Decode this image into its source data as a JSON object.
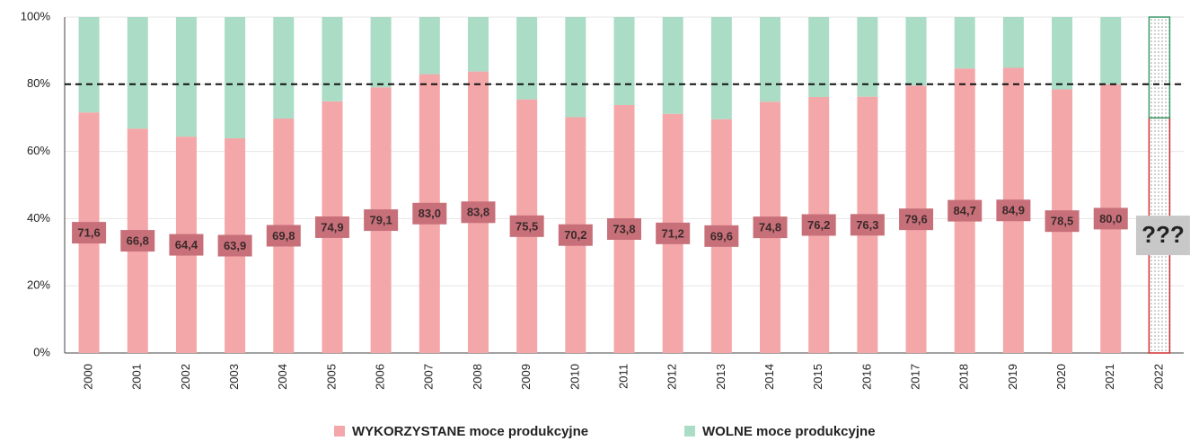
{
  "chart_data": {
    "type": "stacked_bar_100",
    "categories": [
      "2000",
      "2001",
      "2002",
      "2003",
      "2004",
      "2005",
      "2006",
      "2007",
      "2008",
      "2009",
      "2010",
      "2011",
      "2012",
      "2013",
      "2014",
      "2015",
      "2016",
      "2017",
      "2018",
      "2019",
      "2020",
      "2021",
      "2022"
    ],
    "series": [
      {
        "name": "WYKORZYSTANE moce produkcyjne",
        "color": "#f4a7a9",
        "values": [
          71.6,
          66.8,
          64.4,
          63.9,
          69.8,
          74.9,
          79.1,
          83.0,
          83.8,
          75.5,
          70.2,
          73.8,
          71.2,
          69.6,
          74.8,
          76.2,
          76.3,
          79.6,
          84.7,
          84.9,
          78.5,
          80.0,
          70
        ],
        "value_labels": [
          "71,6",
          "66,8",
          "64,4",
          "63,9",
          "69,8",
          "74,9",
          "79,1",
          "83,0",
          "83,8",
          "75,5",
          "70,2",
          "73,8",
          "71,2",
          "69,6",
          "74,8",
          "76,2",
          "76,3",
          "79,6",
          "84,7",
          "84,9",
          "78,5",
          "80,0",
          null
        ]
      },
      {
        "name": "WOLNE moce produkcyjne",
        "color": "#aadcc6",
        "values": [
          28.4,
          33.2,
          35.6,
          36.1,
          30.2,
          25.1,
          20.9,
          17.0,
          16.2,
          24.5,
          29.8,
          26.2,
          28.8,
          30.4,
          25.2,
          23.8,
          23.7,
          20.4,
          15.3,
          15.1,
          21.5,
          20.0,
          30
        ]
      }
    ],
    "annotation": "???",
    "reference_line": 80,
    "ylim": [
      0,
      100
    ],
    "yticks": [
      {
        "value": 0,
        "label": "0%"
      },
      {
        "value": 20,
        "label": "20%"
      },
      {
        "value": 40,
        "label": "40%"
      },
      {
        "value": 60,
        "label": "60%"
      },
      {
        "value": 80,
        "label": "80%"
      },
      {
        "value": 100,
        "label": "100%"
      }
    ],
    "grid": true
  }
}
